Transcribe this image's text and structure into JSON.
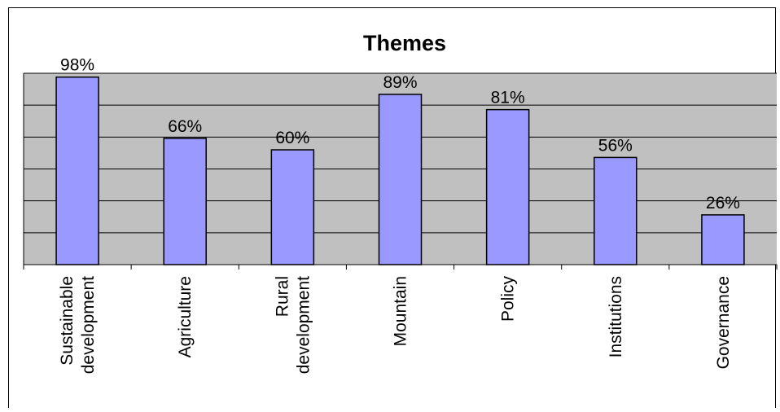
{
  "chart_data": {
    "type": "bar",
    "title": "Themes",
    "xlabel": "",
    "ylabel": "",
    "ylim": [
      0,
      100
    ],
    "grid": true,
    "legend": "none",
    "categories": [
      [
        "Sustainable",
        "development"
      ],
      [
        "Agriculture"
      ],
      [
        "Rural",
        "development"
      ],
      [
        "Mountain"
      ],
      [
        "Policy"
      ],
      [
        "Institutions"
      ],
      [
        "Governance"
      ]
    ],
    "values": [
      98,
      66,
      60,
      89,
      81,
      56,
      26
    ],
    "data_labels": [
      "98%",
      "66%",
      "60%",
      "89%",
      "81%",
      "56%",
      "26%"
    ],
    "colors": {
      "bar_fill": "#9999ff",
      "bar_stroke": "#000000",
      "plot_background": "#c0c0c0",
      "gridline": "#000000"
    }
  }
}
